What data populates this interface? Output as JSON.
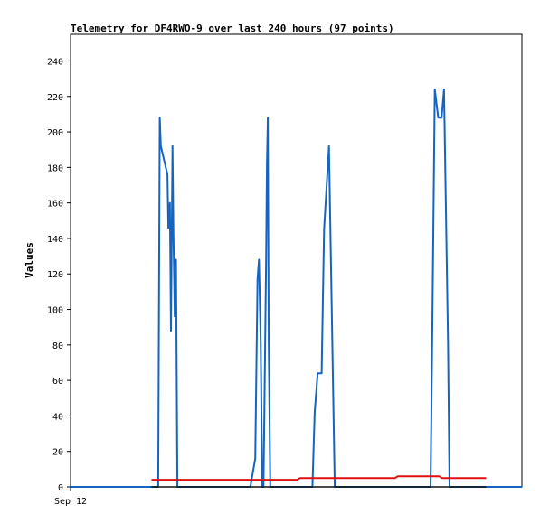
{
  "chart_data": {
    "type": "line",
    "title": "Telemetry for DF4RWO-9 over last 240 hours (97 points)",
    "ylabel": "Values",
    "xlabel": "",
    "x_tick_label": "Sep 12",
    "ylim": [
      0,
      255
    ],
    "y_ticks": [
      0,
      20,
      40,
      60,
      80,
      100,
      120,
      140,
      160,
      180,
      200,
      220,
      240
    ],
    "x_unit": "hours",
    "xlim": [
      0,
      240
    ],
    "grid": false,
    "series": [
      {
        "color": "#1565c0",
        "points": [
          [
            0,
            0
          ],
          [
            46.6,
            0
          ],
          [
            47.4,
            208
          ],
          [
            48,
            192
          ],
          [
            51.5,
            176
          ],
          [
            52,
            146
          ],
          [
            52.8,
            160
          ],
          [
            53.4,
            88
          ],
          [
            54.2,
            192
          ],
          [
            54.7,
            144
          ],
          [
            55.4,
            96
          ],
          [
            56.1,
            128
          ],
          [
            56.8,
            0
          ],
          [
            95.6,
            0
          ],
          [
            98.2,
            16
          ],
          [
            99.4,
            117
          ],
          [
            100.2,
            128
          ],
          [
            101.1,
            82
          ],
          [
            101.9,
            0
          ],
          [
            102.6,
            0
          ],
          [
            104,
            128
          ],
          [
            104.4,
            182
          ],
          [
            104.9,
            208
          ],
          [
            105.4,
            82
          ],
          [
            106.2,
            0
          ],
          [
            128.6,
            0
          ],
          [
            129.8,
            42
          ],
          [
            131.4,
            64
          ],
          [
            133.5,
            64
          ],
          [
            134.8,
            145
          ],
          [
            137.4,
            192
          ],
          [
            140.5,
            0
          ],
          [
            191.4,
            0
          ],
          [
            192.3,
            82
          ],
          [
            193.7,
            224
          ],
          [
            195.5,
            208
          ],
          [
            197.3,
            208
          ],
          [
            198.6,
            224
          ],
          [
            200.7,
            82
          ],
          [
            201.5,
            0
          ],
          [
            240,
            0
          ]
        ]
      },
      {
        "color": "#e01010",
        "points": [
          [
            43,
            4
          ],
          [
            120.5,
            4
          ],
          [
            122,
            5
          ],
          [
            172.5,
            5
          ],
          [
            174,
            6
          ],
          [
            196,
            6
          ],
          [
            197.5,
            5
          ],
          [
            221,
            5
          ]
        ]
      },
      {
        "color": "#111111",
        "points": [
          [
            43,
            0
          ],
          [
            221,
            0
          ]
        ]
      }
    ]
  }
}
